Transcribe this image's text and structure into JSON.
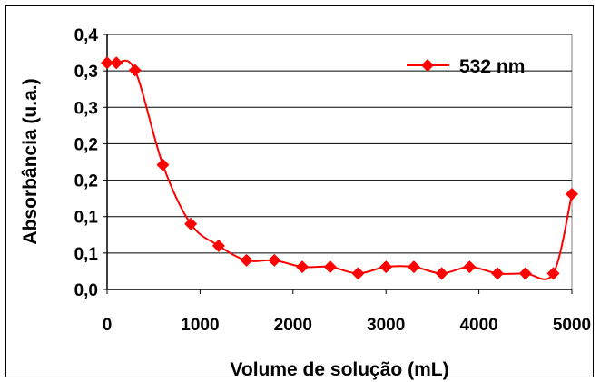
{
  "chart_data": {
    "type": "line",
    "xlabel": "Volume de solução (mL)",
    "ylabel": "Absorbância (u.a.)",
    "xlim": [
      0,
      5000
    ],
    "ylim": [
      0.0,
      0.35
    ],
    "x_ticks": [
      0,
      1000,
      2000,
      3000,
      4000,
      5000
    ],
    "x_tick_labels": [
      "0",
      "1000",
      "2000",
      "3000",
      "4000",
      "5000"
    ],
    "y_ticks": [
      0.0,
      0.05,
      0.1,
      0.15,
      0.2,
      0.25,
      0.3,
      0.35
    ],
    "y_tick_labels": [
      "0,0",
      "0,1",
      "0,1",
      "0,2",
      "0,2",
      "0,3",
      "0,3",
      "0,4"
    ],
    "grid": "horizontal",
    "legend_position": "top-right",
    "series": [
      {
        "name": "532 nm",
        "color": "#ff0000",
        "marker": "diamond",
        "smooth": true,
        "x": [
          0,
          100,
          300,
          600,
          900,
          1200,
          1500,
          1800,
          2100,
          2400,
          2700,
          3000,
          3300,
          3600,
          3900,
          4200,
          4500,
          4800,
          5000
        ],
        "y": [
          0.311,
          0.311,
          0.301,
          0.171,
          0.09,
          0.06,
          0.04,
          0.04,
          0.031,
          0.031,
          0.022,
          0.031,
          0.031,
          0.022,
          0.031,
          0.022,
          0.022,
          0.022,
          0.131
        ]
      }
    ]
  }
}
